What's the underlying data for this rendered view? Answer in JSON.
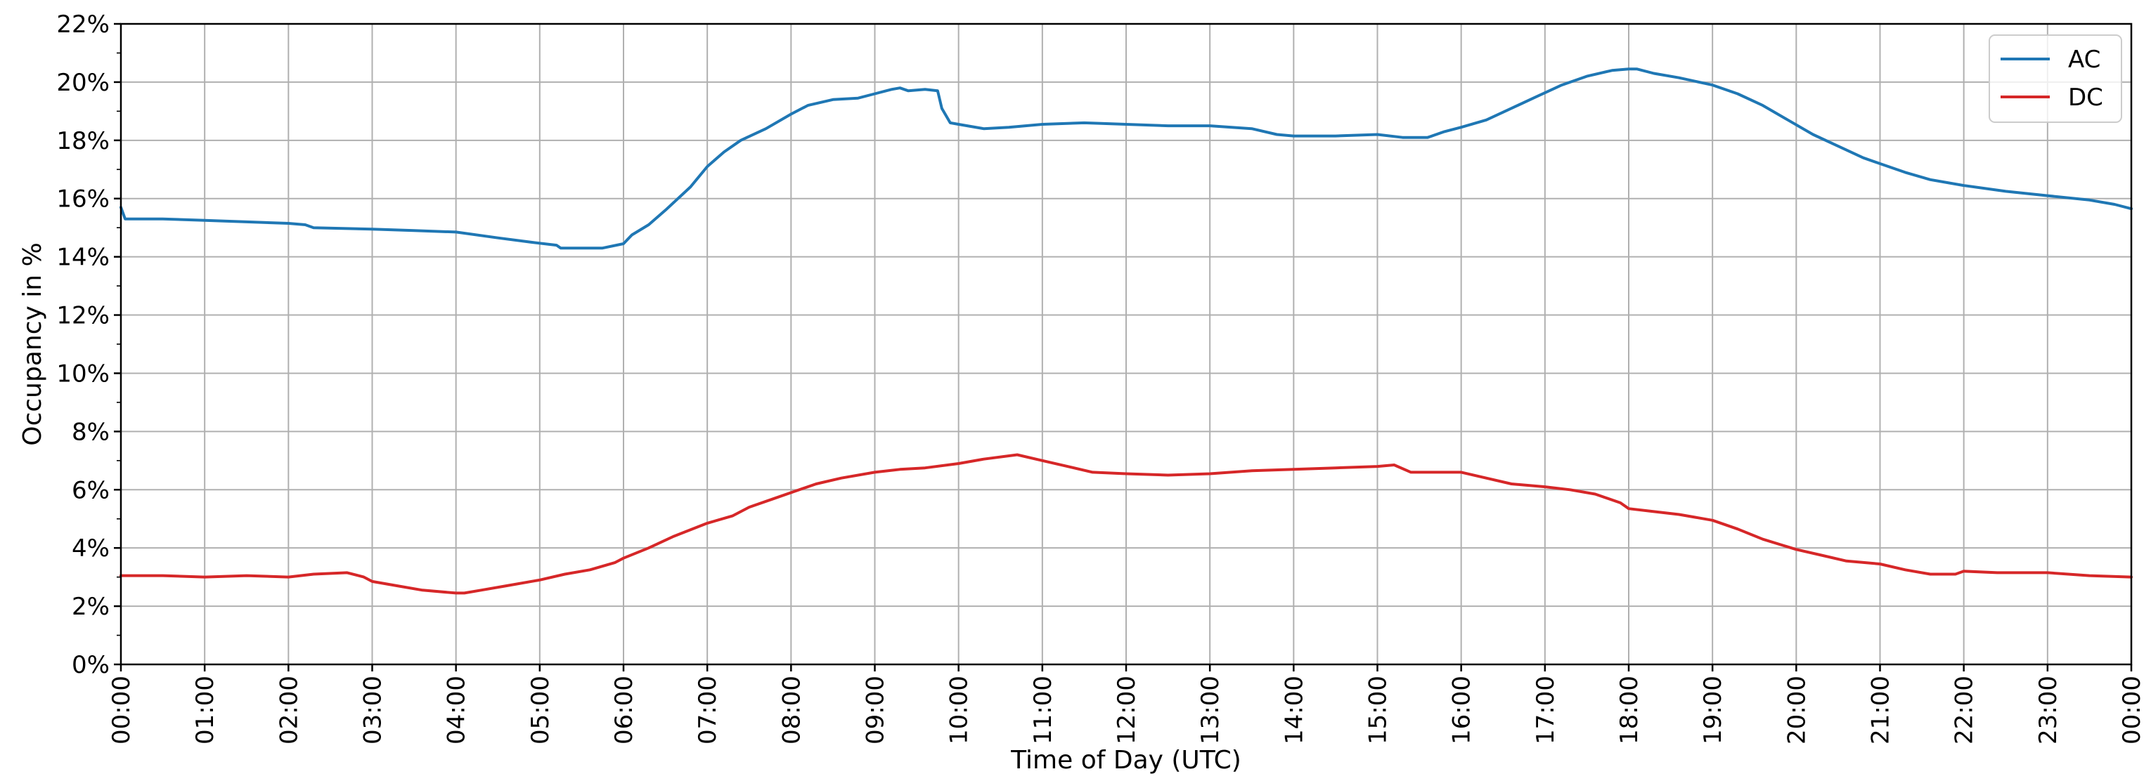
{
  "chart_data": {
    "type": "line",
    "title": "",
    "xlabel": "Time of Day (UTC)",
    "ylabel": "Occupancy in %",
    "xlim": [
      0,
      24
    ],
    "ylim": [
      0,
      22
    ],
    "x_ticks": [
      0,
      1,
      2,
      3,
      4,
      5,
      6,
      7,
      8,
      9,
      10,
      11,
      12,
      13,
      14,
      15,
      16,
      17,
      18,
      19,
      20,
      21,
      22,
      23,
      24
    ],
    "x_tick_labels": [
      "00:00",
      "01:00",
      "02:00",
      "03:00",
      "04:00",
      "05:00",
      "06:00",
      "07:00",
      "08:00",
      "09:00",
      "10:00",
      "11:00",
      "12:00",
      "13:00",
      "14:00",
      "15:00",
      "16:00",
      "17:00",
      "18:00",
      "19:00",
      "20:00",
      "21:00",
      "22:00",
      "23:00",
      "00:00"
    ],
    "y_ticks": [
      0,
      2,
      4,
      6,
      8,
      10,
      12,
      14,
      16,
      18,
      20,
      22
    ],
    "y_tick_labels": [
      "0%",
      "2%",
      "4%",
      "6%",
      "8%",
      "10%",
      "12%",
      "14%",
      "16%",
      "18%",
      "20%",
      "22%"
    ],
    "grid": true,
    "legend_position": "top-right",
    "series": [
      {
        "name": "AC",
        "color": "#1f77b4",
        "points": [
          [
            0.0,
            15.7
          ],
          [
            0.05,
            15.3
          ],
          [
            0.5,
            15.3
          ],
          [
            1.0,
            15.25
          ],
          [
            1.5,
            15.2
          ],
          [
            2.0,
            15.15
          ],
          [
            2.2,
            15.1
          ],
          [
            2.3,
            15.0
          ],
          [
            3.0,
            14.95
          ],
          [
            3.5,
            14.9
          ],
          [
            4.0,
            14.85
          ],
          [
            4.5,
            14.65
          ],
          [
            4.9,
            14.5
          ],
          [
            5.2,
            14.4
          ],
          [
            5.25,
            14.3
          ],
          [
            5.5,
            14.3
          ],
          [
            5.75,
            14.3
          ],
          [
            6.0,
            14.45
          ],
          [
            6.1,
            14.75
          ],
          [
            6.3,
            15.1
          ],
          [
            6.5,
            15.6
          ],
          [
            6.8,
            16.4
          ],
          [
            7.0,
            17.1
          ],
          [
            7.2,
            17.6
          ],
          [
            7.4,
            18.0
          ],
          [
            7.7,
            18.4
          ],
          [
            8.0,
            18.9
          ],
          [
            8.2,
            19.2
          ],
          [
            8.5,
            19.4
          ],
          [
            8.8,
            19.45
          ],
          [
            9.0,
            19.6
          ],
          [
            9.2,
            19.75
          ],
          [
            9.3,
            19.8
          ],
          [
            9.4,
            19.7
          ],
          [
            9.6,
            19.75
          ],
          [
            9.75,
            19.7
          ],
          [
            9.8,
            19.1
          ],
          [
            9.9,
            18.6
          ],
          [
            10.0,
            18.55
          ],
          [
            10.3,
            18.4
          ],
          [
            10.6,
            18.45
          ],
          [
            11.0,
            18.55
          ],
          [
            11.5,
            18.6
          ],
          [
            12.0,
            18.55
          ],
          [
            12.5,
            18.5
          ],
          [
            13.0,
            18.5
          ],
          [
            13.5,
            18.4
          ],
          [
            13.8,
            18.2
          ],
          [
            14.0,
            18.15
          ],
          [
            14.5,
            18.15
          ],
          [
            15.0,
            18.2
          ],
          [
            15.3,
            18.1
          ],
          [
            15.6,
            18.1
          ],
          [
            15.8,
            18.3
          ],
          [
            16.0,
            18.45
          ],
          [
            16.3,
            18.7
          ],
          [
            16.6,
            19.1
          ],
          [
            16.9,
            19.5
          ],
          [
            17.2,
            19.9
          ],
          [
            17.5,
            20.2
          ],
          [
            17.8,
            20.4
          ],
          [
            18.0,
            20.45
          ],
          [
            18.1,
            20.45
          ],
          [
            18.3,
            20.3
          ],
          [
            18.6,
            20.15
          ],
          [
            19.0,
            19.9
          ],
          [
            19.3,
            19.6
          ],
          [
            19.6,
            19.2
          ],
          [
            19.9,
            18.7
          ],
          [
            20.2,
            18.2
          ],
          [
            20.5,
            17.8
          ],
          [
            20.8,
            17.4
          ],
          [
            21.0,
            17.2
          ],
          [
            21.3,
            16.9
          ],
          [
            21.6,
            16.65
          ],
          [
            22.0,
            16.45
          ],
          [
            22.5,
            16.25
          ],
          [
            23.0,
            16.1
          ],
          [
            23.5,
            15.95
          ],
          [
            23.8,
            15.8
          ],
          [
            24.0,
            15.65
          ]
        ]
      },
      {
        "name": "DC",
        "color": "#d62728",
        "points": [
          [
            0.0,
            3.05
          ],
          [
            0.5,
            3.05
          ],
          [
            1.0,
            3.0
          ],
          [
            1.5,
            3.05
          ],
          [
            2.0,
            3.0
          ],
          [
            2.3,
            3.1
          ],
          [
            2.7,
            3.15
          ],
          [
            2.9,
            3.0
          ],
          [
            3.0,
            2.85
          ],
          [
            3.3,
            2.7
          ],
          [
            3.6,
            2.55
          ],
          [
            4.0,
            2.45
          ],
          [
            4.1,
            2.45
          ],
          [
            4.3,
            2.55
          ],
          [
            4.6,
            2.7
          ],
          [
            5.0,
            2.9
          ],
          [
            5.3,
            3.1
          ],
          [
            5.6,
            3.25
          ],
          [
            5.9,
            3.5
          ],
          [
            6.0,
            3.65
          ],
          [
            6.3,
            4.0
          ],
          [
            6.6,
            4.4
          ],
          [
            7.0,
            4.85
          ],
          [
            7.3,
            5.1
          ],
          [
            7.5,
            5.4
          ],
          [
            7.8,
            5.7
          ],
          [
            8.0,
            5.9
          ],
          [
            8.3,
            6.2
          ],
          [
            8.6,
            6.4
          ],
          [
            9.0,
            6.6
          ],
          [
            9.3,
            6.7
          ],
          [
            9.6,
            6.75
          ],
          [
            10.0,
            6.9
          ],
          [
            10.3,
            7.05
          ],
          [
            10.7,
            7.2
          ],
          [
            11.0,
            7.0
          ],
          [
            11.3,
            6.8
          ],
          [
            11.6,
            6.6
          ],
          [
            12.0,
            6.55
          ],
          [
            12.5,
            6.5
          ],
          [
            13.0,
            6.55
          ],
          [
            13.5,
            6.65
          ],
          [
            14.0,
            6.7
          ],
          [
            14.5,
            6.75
          ],
          [
            15.0,
            6.8
          ],
          [
            15.2,
            6.85
          ],
          [
            15.4,
            6.6
          ],
          [
            15.8,
            6.6
          ],
          [
            16.0,
            6.6
          ],
          [
            16.3,
            6.4
          ],
          [
            16.6,
            6.2
          ],
          [
            17.0,
            6.1
          ],
          [
            17.3,
            6.0
          ],
          [
            17.6,
            5.85
          ],
          [
            17.9,
            5.55
          ],
          [
            18.0,
            5.35
          ],
          [
            18.3,
            5.25
          ],
          [
            18.6,
            5.15
          ],
          [
            19.0,
            4.95
          ],
          [
            19.3,
            4.65
          ],
          [
            19.6,
            4.3
          ],
          [
            20.0,
            3.95
          ],
          [
            20.3,
            3.75
          ],
          [
            20.6,
            3.55
          ],
          [
            21.0,
            3.45
          ],
          [
            21.3,
            3.25
          ],
          [
            21.6,
            3.1
          ],
          [
            21.9,
            3.1
          ],
          [
            22.0,
            3.2
          ],
          [
            22.4,
            3.15
          ],
          [
            22.8,
            3.15
          ],
          [
            23.0,
            3.15
          ],
          [
            23.5,
            3.05
          ],
          [
            24.0,
            3.0
          ]
        ]
      }
    ]
  }
}
